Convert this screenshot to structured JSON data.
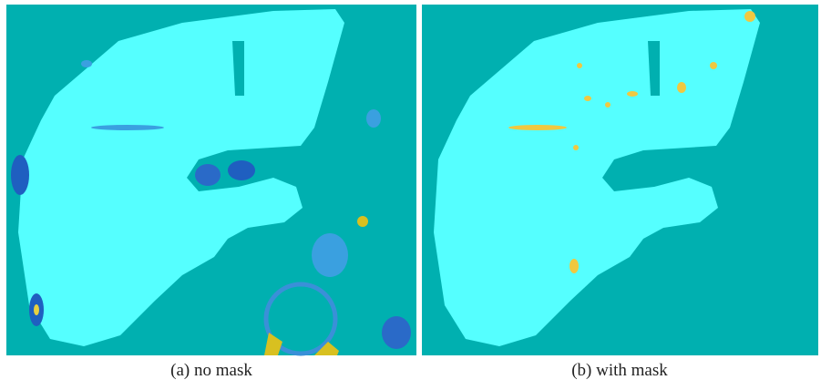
{
  "figure": {
    "captions": [
      "(a) no mask",
      "(b) with mask"
    ]
  }
}
